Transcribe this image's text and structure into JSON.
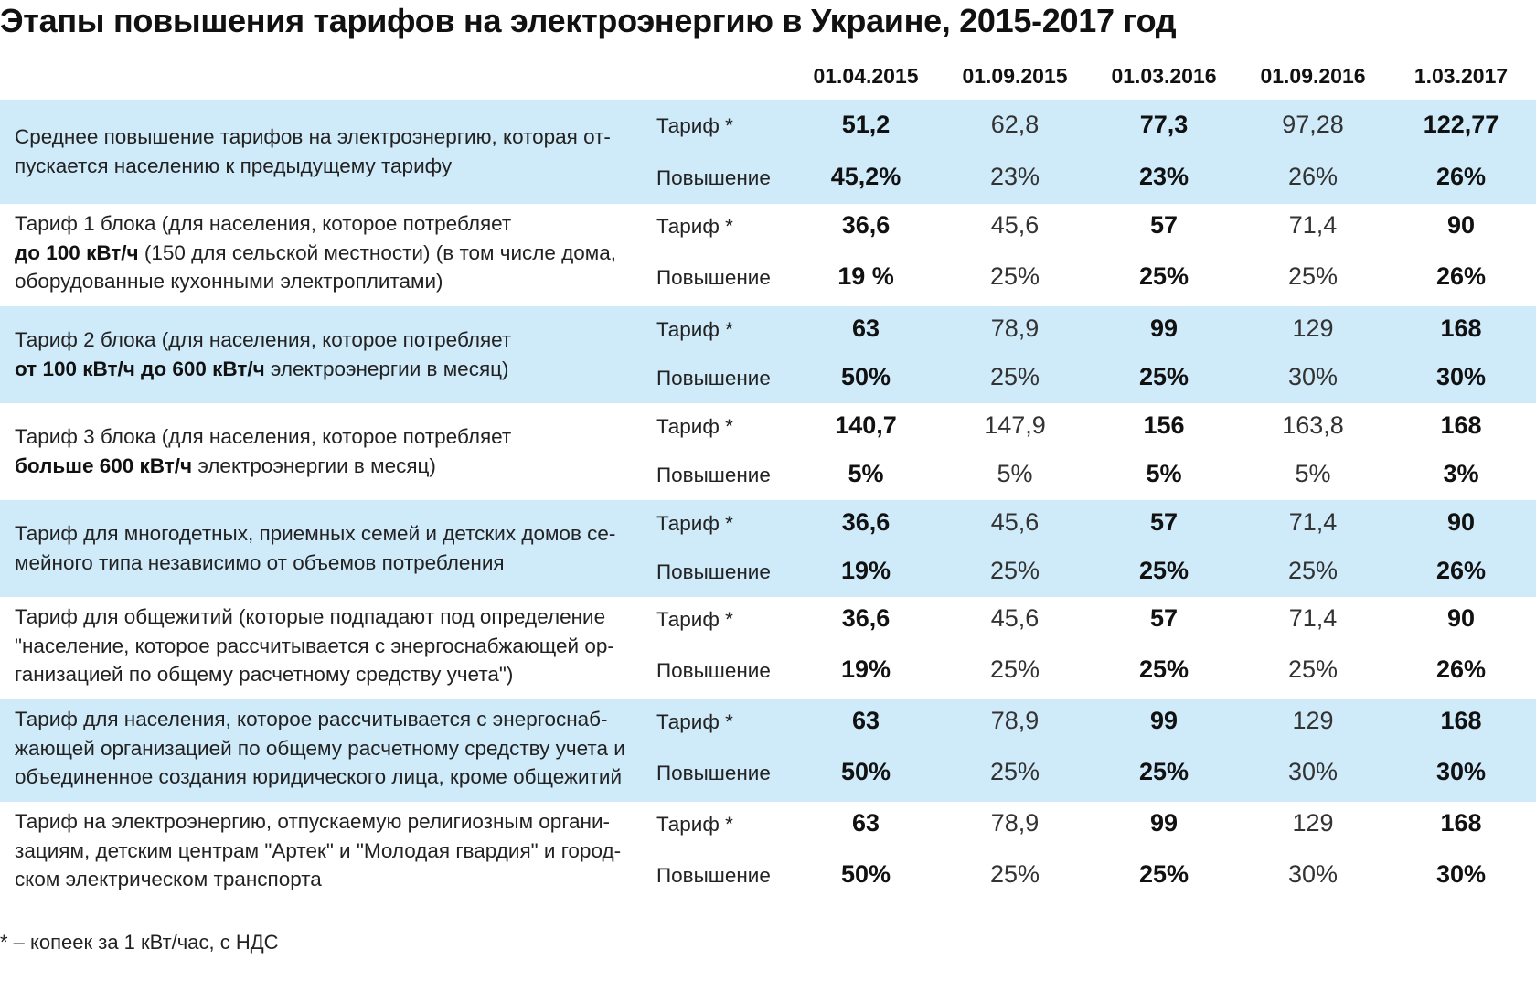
{
  "title": "Этапы повышения тарифов на электроэнергию в Украине, 2015-2017 год",
  "dates": [
    "01.04.2015",
    "01.09.2015",
    "01.03.2016",
    "01.09.2016",
    "1.03.2017"
  ],
  "labels": {
    "tariff": "Тариф *",
    "increase": "Повышение"
  },
  "rows": [
    {
      "description": [
        "Среднее повышение тарифов на электроэнергию, которая от-",
        "пускается населению к предыдущему тарифу"
      ],
      "tariff": [
        "51,2",
        "62,8",
        "77,3",
        "97,28",
        "122,77"
      ],
      "increase": [
        "45,2%",
        "23%",
        "23%",
        "26%",
        "26%"
      ]
    },
    {
      "description": [
        "Тариф 1 блока (для населения, которое потребляет",
        "до 100 кВт/ч",
        " (150 для сельской местности) (в том числе дома,",
        "оборудованные кухонными электроплитами)"
      ],
      "tariff": [
        "36,6",
        "45,6",
        "57",
        "71,4",
        "90"
      ],
      "increase": [
        "19 %",
        "25%",
        "25%",
        "25%",
        "26%"
      ]
    },
    {
      "description": [
        "Тариф 2 блока (для населения, которое потребляет",
        "от 100 кВт/ч до 600 кВт/ч",
        " электроэнергии в месяц)"
      ],
      "tariff": [
        "63",
        "78,9",
        "99",
        "129",
        "168"
      ],
      "increase": [
        "50%",
        "25%",
        "25%",
        "30%",
        "30%"
      ]
    },
    {
      "description": [
        "Тариф 3 блока (для населения, которое потребляет",
        "больше 600 кВт/ч",
        " электроэнергии в месяц)"
      ],
      "tariff": [
        "140,7",
        "147,9",
        "156",
        "163,8",
        "168"
      ],
      "increase": [
        "5%",
        "5%",
        "5%",
        "5%",
        "3%"
      ]
    },
    {
      "description": [
        "Тариф для многодетных, приемных семей и детских домов се-",
        "мейного типа независимо от объемов потребления"
      ],
      "tariff": [
        "36,6",
        "45,6",
        "57",
        "71,4",
        "90"
      ],
      "increase": [
        "19%",
        "25%",
        "25%",
        "25%",
        "26%"
      ]
    },
    {
      "description": [
        "Тариф для общежитий (которые подпадают под определение",
        "\"население, которое рассчитывается с энергоснабжающей ор-",
        "ганизацией по общему расчетному средству учета\")"
      ],
      "tariff": [
        "36,6",
        "45,6",
        "57",
        "71,4",
        "90"
      ],
      "increase": [
        "19%",
        "25%",
        "25%",
        "25%",
        "26%"
      ]
    },
    {
      "description": [
        "Тариф для населения, которое рассчитывается с энергоснаб-",
        "жающей организацией по общему расчетному средству учета и",
        "объединенное создания юридического лица, кроме общежитий"
      ],
      "tariff": [
        "63",
        "78,9",
        "99",
        "129",
        "168"
      ],
      "increase": [
        "50%",
        "25%",
        "25%",
        "30%",
        "30%"
      ]
    },
    {
      "description": [
        "Тариф на электроэнергию, отпускаемую религиозным органи-",
        "зациям, детским центрам \"Артек\" и \"Молодая гвардия\" и город-",
        "ском электрическом транспорта"
      ],
      "tariff": [
        "63",
        "78,9",
        "99",
        "129",
        "168"
      ],
      "increase": [
        "50%",
        "25%",
        "25%",
        "30%",
        "30%"
      ]
    }
  ],
  "footnote": "* – копеек за 1 кВт/час, с НДС"
}
